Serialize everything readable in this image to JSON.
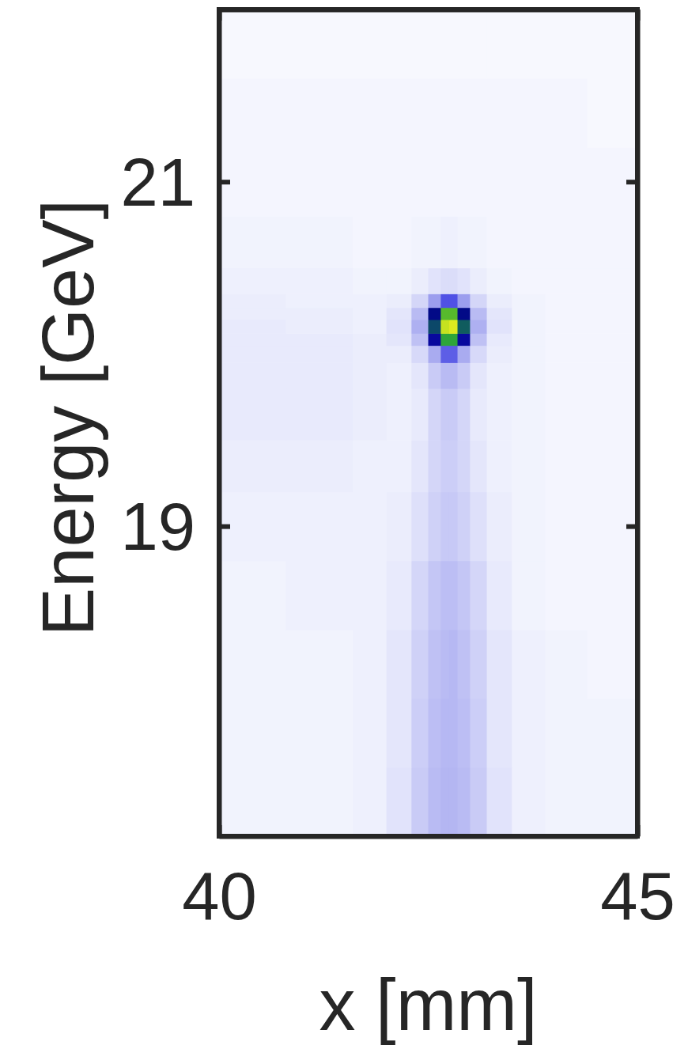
{
  "chart_data": {
    "type": "heatmap",
    "xlabel": "x [mm]",
    "ylabel": "Energy [GeV]",
    "xlim": [
      40,
      45
    ],
    "ylim": [
      17.2,
      22
    ],
    "xticks": [
      40,
      45
    ],
    "yticks": [
      19,
      21
    ],
    "x_edges": [
      40,
      40.8,
      41.6,
      42.0,
      42.3,
      42.5,
      42.65,
      42.75,
      42.85,
      43.0,
      43.2,
      43.5,
      43.9,
      44.4,
      45
    ],
    "y_edges": [
      17.2,
      17.6,
      18.0,
      18.4,
      18.8,
      19.2,
      19.5,
      19.8,
      19.95,
      20.05,
      20.12,
      20.2,
      20.27,
      20.35,
      20.5,
      20.8,
      21.2,
      21.6,
      22
    ],
    "zlim": [
      0,
      100
    ],
    "z": [
      [
        5,
        5,
        6,
        10,
        18,
        24,
        26,
        26,
        24,
        18,
        10,
        6,
        5,
        5
      ],
      [
        5,
        5,
        6,
        9,
        17,
        23,
        25,
        25,
        23,
        17,
        9,
        6,
        5,
        5
      ],
      [
        5,
        5,
        6,
        9,
        16,
        22,
        24,
        25,
        22,
        16,
        9,
        6,
        5,
        4
      ],
      [
        5,
        6,
        6,
        8,
        14,
        20,
        23,
        23,
        20,
        14,
        8,
        5,
        4,
        4
      ],
      [
        6,
        6,
        6,
        7,
        11,
        16,
        19,
        19,
        16,
        11,
        7,
        5,
        4,
        4
      ],
      [
        7,
        7,
        6,
        6,
        9,
        14,
        17,
        17,
        14,
        9,
        6,
        5,
        4,
        4
      ],
      [
        8,
        8,
        7,
        6,
        8,
        14,
        18,
        18,
        14,
        8,
        6,
        5,
        4,
        4
      ],
      [
        8,
        8,
        7,
        6,
        9,
        18,
        24,
        24,
        18,
        9,
        6,
        5,
        4,
        4
      ],
      [
        8,
        8,
        7,
        7,
        13,
        30,
        42,
        42,
        30,
        13,
        7,
        5,
        4,
        4
      ],
      [
        8,
        8,
        7,
        9,
        22,
        62,
        82,
        82,
        62,
        22,
        8,
        5,
        4,
        4
      ],
      [
        8,
        7,
        6,
        10,
        28,
        72,
        96,
        98,
        74,
        28,
        10,
        5,
        4,
        4
      ],
      [
        7,
        7,
        6,
        9,
        24,
        66,
        86,
        86,
        66,
        24,
        9,
        5,
        4,
        4
      ],
      [
        7,
        6,
        6,
        7,
        14,
        32,
        44,
        44,
        32,
        14,
        7,
        5,
        4,
        4
      ],
      [
        6,
        6,
        5,
        5,
        7,
        10,
        12,
        12,
        10,
        7,
        5,
        4,
        4,
        4
      ],
      [
        5,
        5,
        4,
        4,
        5,
        5,
        6,
        6,
        5,
        5,
        4,
        4,
        4,
        4
      ],
      [
        4,
        4,
        4,
        4,
        4,
        4,
        4,
        4,
        4,
        4,
        4,
        4,
        4,
        4
      ],
      [
        4,
        4,
        4,
        4,
        4,
        4,
        4,
        4,
        4,
        4,
        4,
        4,
        4,
        3
      ],
      [
        3,
        3,
        3,
        3,
        3,
        3,
        3,
        3,
        3,
        3,
        3,
        3,
        3,
        3
      ]
    ]
  }
}
